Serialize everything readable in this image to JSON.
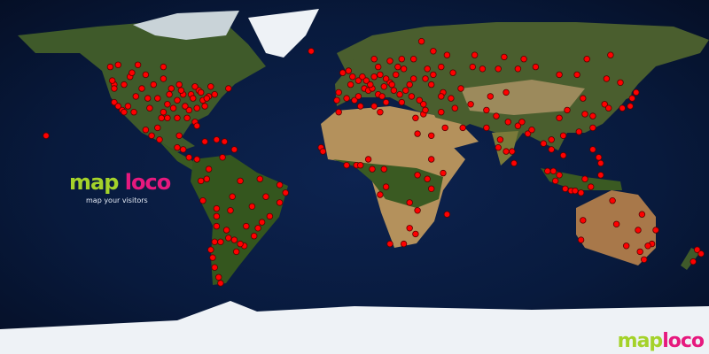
{
  "map": {
    "projection": "equirectangular",
    "colors": {
      "ocean": "#0a1d45",
      "land": "#3f5a2a",
      "desert": "#b4915c",
      "ice": "#eef2f6",
      "marker": "#ff0000",
      "marker_outline": "#5a0000"
    },
    "marker_icon": "red-dot",
    "visitors": [
      [
        -122,
        47
      ],
      [
        -122,
        45
      ],
      [
        -122,
        38
      ],
      [
        -118,
        34
      ],
      [
        -117,
        33
      ],
      [
        -112,
        33
      ],
      [
        -105,
        40
      ],
      [
        -111,
        41
      ],
      [
        -115,
        36
      ],
      [
        -97,
        33
      ],
      [
        -95,
        30
      ],
      [
        -98,
        30
      ],
      [
        -90,
        30
      ],
      [
        -84,
        34
      ],
      [
        -81,
        28
      ],
      [
        -80,
        26
      ],
      [
        -77,
        39
      ],
      [
        -74,
        41
      ],
      [
        -71,
        42
      ],
      [
        -75,
        40
      ],
      [
        -87,
        42
      ],
      [
        -83,
        42
      ],
      [
        -93,
        45
      ],
      [
        -90,
        39
      ],
      [
        -86,
        36
      ],
      [
        -80,
        35
      ],
      [
        -82,
        40
      ],
      [
        -79,
        44
      ],
      [
        -73,
        46
      ],
      [
        -64,
        45
      ],
      [
        -97,
        50
      ],
      [
        -114,
        51
      ],
      [
        -123,
        49
      ],
      [
        -113,
        53
      ],
      [
        -106,
        52
      ],
      [
        -100,
        40
      ],
      [
        -95,
        37
      ],
      [
        -88,
        44
      ],
      [
        -78,
        43
      ],
      [
        -76,
        36
      ],
      [
        -85,
        30
      ],
      [
        -104,
        35
      ],
      [
        -120,
        36
      ],
      [
        -94,
        42
      ],
      [
        -124,
        56
      ],
      [
        -120,
        57
      ],
      [
        -110,
        57
      ],
      [
        -97,
        56
      ],
      [
        -89,
        47
      ],
      [
        -81,
        46
      ],
      [
        -92,
        35
      ],
      [
        -102,
        47
      ],
      [
        -108,
        45
      ],
      [
        -117,
        47
      ],
      [
        -99,
        19
      ],
      [
        -103,
        21
      ],
      [
        -106,
        24
      ],
      [
        -100,
        25
      ],
      [
        -89,
        21
      ],
      [
        -90,
        15
      ],
      [
        -87,
        14
      ],
      [
        -84,
        10
      ],
      [
        -80,
        9
      ],
      [
        -76,
        18
      ],
      [
        -66,
        18
      ],
      [
        -70,
        19
      ],
      [
        -61,
        14
      ],
      [
        -156.6,
        21
      ],
      [
        -74,
        4
      ],
      [
        -67,
        10
      ],
      [
        -75,
        -1
      ],
      [
        -78,
        -2
      ],
      [
        -77,
        -12
      ],
      [
        -70,
        -16
      ],
      [
        -63,
        -17
      ],
      [
        -58,
        -2
      ],
      [
        -48,
        -1
      ],
      [
        -38,
        -4
      ],
      [
        -35,
        -8
      ],
      [
        -38,
        -13
      ],
      [
        -43,
        -20
      ],
      [
        -47,
        -23
      ],
      [
        -49,
        -26
      ],
      [
        -51,
        -30
      ],
      [
        -56,
        -35
      ],
      [
        -58,
        -34
      ],
      [
        -61,
        -32
      ],
      [
        -65,
        -27
      ],
      [
        -68,
        -33
      ],
      [
        -71,
        -33
      ],
      [
        -73,
        -37
      ],
      [
        -72,
        -41
      ],
      [
        -71,
        -46
      ],
      [
        -69,
        -51
      ],
      [
        -68,
        -54
      ],
      [
        -60,
        -38
      ],
      [
        -64,
        -31
      ],
      [
        -55,
        -25
      ],
      [
        -52,
        -15
      ],
      [
        -45,
        -10
      ],
      [
        -62,
        -10
      ],
      [
        -70,
        -25
      ],
      [
        -70,
        -20
      ],
      [
        -9,
        39
      ],
      [
        -4,
        40
      ],
      [
        0,
        39
      ],
      [
        2,
        41
      ],
      [
        -8,
        43
      ],
      [
        -3,
        54
      ],
      [
        -1,
        51
      ],
      [
        -6,
        53
      ],
      [
        2,
        49
      ],
      [
        4,
        51
      ],
      [
        5,
        45
      ],
      [
        7,
        44
      ],
      [
        9,
        45
      ],
      [
        12,
        42
      ],
      [
        14,
        41
      ],
      [
        16,
        38
      ],
      [
        10,
        51
      ],
      [
        13,
        52
      ],
      [
        8,
        47
      ],
      [
        18,
        48
      ],
      [
        21,
        52
      ],
      [
        19,
        47
      ],
      [
        26,
        44
      ],
      [
        23,
        42
      ],
      [
        24,
        38
      ],
      [
        29,
        41
      ],
      [
        33,
        39
      ],
      [
        35,
        37
      ],
      [
        30,
        50
      ],
      [
        37,
        55
      ],
      [
        30,
        60
      ],
      [
        24,
        60
      ],
      [
        18,
        59
      ],
      [
        10,
        60
      ],
      [
        12,
        56
      ],
      [
        25,
        55
      ],
      [
        44,
        56
      ],
      [
        50,
        53
      ],
      [
        39,
        47
      ],
      [
        45,
        43
      ],
      [
        49,
        40
      ],
      [
        44,
        41
      ],
      [
        54,
        45
      ],
      [
        60,
        56
      ],
      [
        65,
        55
      ],
      [
        73,
        55
      ],
      [
        83,
        55
      ],
      [
        92,
        56
      ],
      [
        104,
        52
      ],
      [
        113,
        52
      ],
      [
        128,
        50
      ],
      [
        135,
        48
      ],
      [
        47,
        62
      ],
      [
        40,
        64
      ],
      [
        61,
        62
      ],
      [
        76,
        61
      ],
      [
        86,
        60
      ],
      [
        118,
        60
      ],
      [
        130,
        62
      ],
      [
        34,
        69
      ],
      [
        -22,
        64
      ],
      [
        15,
        46
      ],
      [
        20,
        44
      ],
      [
        28,
        47
      ],
      [
        36,
        50
      ],
      [
        40,
        52
      ],
      [
        6,
        49
      ],
      [
        -2,
        47
      ],
      [
        16,
        50
      ],
      [
        22,
        56
      ],
      [
        35,
        32
      ],
      [
        36,
        34
      ],
      [
        44,
        33
      ],
      [
        51,
        35
      ],
      [
        46,
        25
      ],
      [
        55,
        25
      ],
      [
        39,
        21
      ],
      [
        59,
        37
      ],
      [
        69,
        41
      ],
      [
        77,
        43
      ],
      [
        67,
        34
      ],
      [
        72,
        31
      ],
      [
        67,
        25
      ],
      [
        74,
        19
      ],
      [
        73,
        15
      ],
      [
        77,
        13
      ],
      [
        80,
        13
      ],
      [
        78,
        28
      ],
      [
        83,
        26
      ],
      [
        88,
        22
      ],
      [
        85,
        28
      ],
      [
        81,
        7
      ],
      [
        90,
        24
      ],
      [
        -17,
        15
      ],
      [
        -8,
        33
      ],
      [
        3,
        36
      ],
      [
        10,
        36
      ],
      [
        13,
        33
      ],
      [
        31,
        30
      ],
      [
        32,
        22
      ],
      [
        -16,
        13
      ],
      [
        -4,
        6
      ],
      [
        1,
        6
      ],
      [
        3,
        6
      ],
      [
        7,
        9
      ],
      [
        9,
        4
      ],
      [
        15,
        4
      ],
      [
        32,
        1
      ],
      [
        37,
        -1
      ],
      [
        39,
        -6
      ],
      [
        39,
        9
      ],
      [
        45,
        2
      ],
      [
        28,
        -13
      ],
      [
        32,
        -17
      ],
      [
        28,
        -26
      ],
      [
        18,
        -34
      ],
      [
        25,
        -34
      ],
      [
        31,
        -29
      ],
      [
        47,
        -19
      ],
      [
        13,
        -9
      ],
      [
        16,
        -5
      ],
      [
        100,
        14
      ],
      [
        101,
        3
      ],
      [
        104,
        1
      ],
      [
        106,
        11
      ],
      [
        106,
        21
      ],
      [
        100,
        19
      ],
      [
        96,
        17
      ],
      [
        104,
        30
      ],
      [
        108,
        34
      ],
      [
        114,
        23
      ],
      [
        116,
        40
      ],
      [
        117,
        32
      ],
      [
        121,
        31
      ],
      [
        121,
        25
      ],
      [
        127,
        37
      ],
      [
        129,
        35
      ],
      [
        136,
        35
      ],
      [
        140,
        36
      ],
      [
        141,
        40
      ],
      [
        143,
        43
      ],
      [
        121,
        14
      ],
      [
        124,
        10
      ],
      [
        125,
        7
      ],
      [
        107,
        -6
      ],
      [
        110,
        -7
      ],
      [
        112,
        -7
      ],
      [
        115,
        -8
      ],
      [
        117,
        -1
      ],
      [
        120,
        -5
      ],
      [
        125,
        1
      ],
      [
        98,
        3
      ],
      [
        102,
        -2
      ],
      [
        115,
        -32
      ],
      [
        116,
        -22
      ],
      [
        131,
        -12
      ],
      [
        138,
        -35
      ],
      [
        145,
        -38
      ],
      [
        151,
        -34
      ],
      [
        153,
        -27
      ],
      [
        146,
        -19
      ],
      [
        149,
        -35
      ],
      [
        147,
        -42
      ],
      [
        144,
        -27
      ],
      [
        133,
        -24
      ],
      [
        174,
        -37
      ],
      [
        172,
        -43
      ],
      [
        176,
        -39
      ]
    ]
  },
  "logo": {
    "part1": "map",
    "part2": "loco",
    "tagline": "map your visitors"
  },
  "corner_logo": {
    "part1": "map",
    "part2": "loco"
  }
}
